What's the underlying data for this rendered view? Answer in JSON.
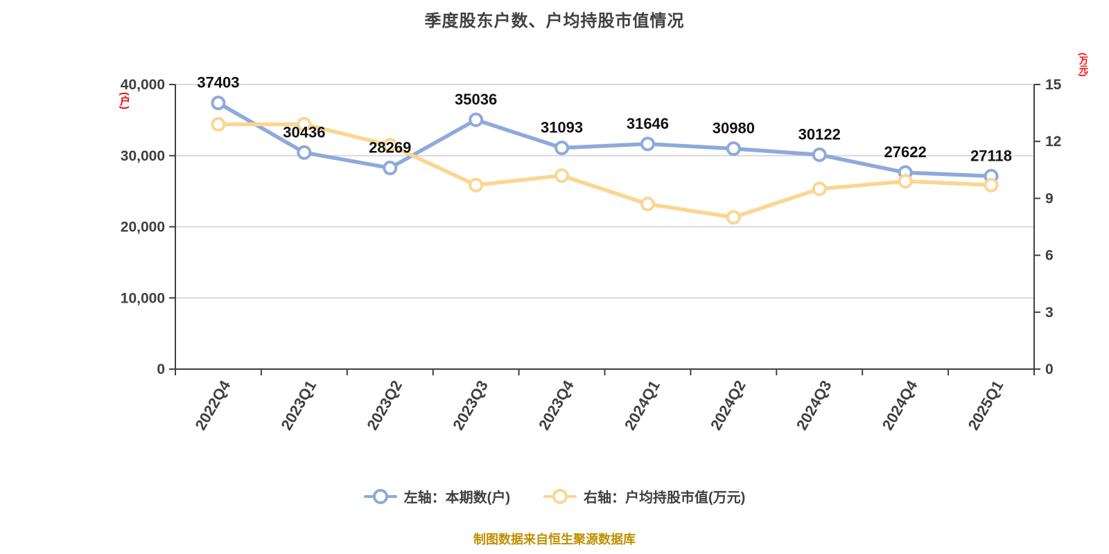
{
  "title": "季度股东户数、户均持股市值情况",
  "source_note": "制图数据来自恒生聚源数据库",
  "colors": {
    "series_blue": "#8EA9DB",
    "series_yellow": "#FAD691",
    "axis": "#404040",
    "grid": "#D9D9D9",
    "tick_text": "#3F3F3F",
    "data_label_text": "#111111",
    "unit_label_red": "#FF0000",
    "source_text_gold": "#BF8F00",
    "marker_fill": "#FFFFFF"
  },
  "chart_data": {
    "type": "line",
    "categories": [
      "2022Q4",
      "2023Q1",
      "2023Q2",
      "2023Q3",
      "2023Q4",
      "2024Q1",
      "2024Q2",
      "2024Q3",
      "2024Q4",
      "2025Q1"
    ],
    "series": [
      {
        "name": "左轴：本期数(户)",
        "axis": "left",
        "color": "#8EA9DB",
        "values": [
          37403,
          30436,
          28269,
          35036,
          31093,
          31646,
          30980,
          30122,
          27622,
          27118
        ],
        "data_labels": true
      },
      {
        "name": "右轴：户均持股市值(万元)",
        "axis": "right",
        "color": "#FAD691",
        "values": [
          12.9,
          12.9,
          11.8,
          9.7,
          10.2,
          8.7,
          8.0,
          9.5,
          9.9,
          9.7
        ],
        "data_labels": false
      }
    ],
    "left_axis": {
      "min": 0,
      "max": 40000,
      "ticks": [
        40000,
        30000,
        20000,
        10000,
        0
      ],
      "unit": "(户)"
    },
    "right_axis": {
      "min": 0,
      "max": 15,
      "ticks": [
        15,
        12,
        9,
        6,
        3,
        0
      ],
      "unit": "(万元)"
    },
    "grid": true,
    "legend_position": "bottom",
    "x_label_rotation_deg": -60
  }
}
